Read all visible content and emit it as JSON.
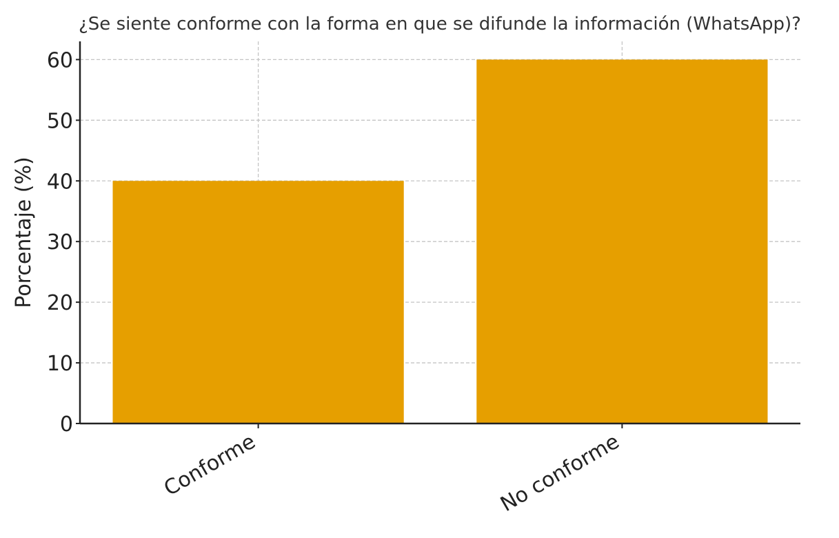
{
  "chart_data": {
    "type": "bar",
    "title": "¿Se siente conforme con la forma en que se difunde la información (WhatsApp)?",
    "xlabel": "",
    "ylabel": "Porcentaje (%)",
    "categories": [
      "Conforme",
      "No conforme"
    ],
    "values": [
      40,
      60
    ],
    "ylim": [
      0,
      63
    ],
    "yticks": [
      0,
      10,
      20,
      30,
      40,
      50,
      60
    ],
    "grid": true,
    "bar_color": "#E69F00"
  }
}
